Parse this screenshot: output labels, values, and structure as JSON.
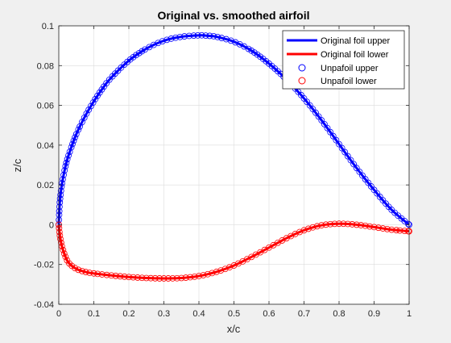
{
  "chart_data": {
    "type": "line",
    "title": "Original vs. smoothed airfoil",
    "xlabel": "x/c",
    "ylabel": "z/c",
    "xlim": [
      0,
      1
    ],
    "ylim": [
      -0.04,
      0.1
    ],
    "xticks": [
      0,
      0.1,
      0.2,
      0.3,
      0.4,
      0.5,
      0.6,
      0.7,
      0.8,
      0.9,
      1
    ],
    "yticks": [
      -0.04,
      -0.02,
      0,
      0.02,
      0.04,
      0.06,
      0.08,
      0.1
    ],
    "xtick_labels": [
      "0",
      "0.1",
      "0.2",
      "0.3",
      "0.4",
      "0.5",
      "0.6",
      "0.7",
      "0.8",
      "0.9",
      "1"
    ],
    "ytick_labels": [
      "-0.04",
      "-0.02",
      "0",
      "0.02",
      "0.04",
      "0.06",
      "0.08",
      "0.1"
    ],
    "grid": true,
    "legend_position": "top-right",
    "series": [
      {
        "name": "Original foil upper",
        "style": "line",
        "color": "#0000ff",
        "x": [
          0,
          0.002,
          0.005,
          0.01,
          0.02,
          0.03,
          0.05,
          0.075,
          0.1,
          0.125,
          0.15,
          0.2,
          0.25,
          0.3,
          0.35,
          0.4,
          0.425,
          0.45,
          0.5,
          0.55,
          0.6,
          0.65,
          0.7,
          0.75,
          0.8,
          0.85,
          0.9,
          0.95,
          1
        ],
        "y": [
          0,
          0.009,
          0.015,
          0.0215,
          0.03,
          0.036,
          0.0455,
          0.0545,
          0.062,
          0.0685,
          0.074,
          0.0825,
          0.0885,
          0.0925,
          0.0945,
          0.0952,
          0.095,
          0.0945,
          0.092,
          0.0875,
          0.081,
          0.073,
          0.0635,
          0.0525,
          0.0405,
          0.0285,
          0.0175,
          0.0075,
          0
        ]
      },
      {
        "name": "Original foil lower",
        "style": "line",
        "color": "#ff0000",
        "x": [
          0,
          0.002,
          0.005,
          0.01,
          0.02,
          0.03,
          0.05,
          0.075,
          0.1,
          0.15,
          0.2,
          0.25,
          0.3,
          0.35,
          0.4,
          0.45,
          0.5,
          0.55,
          0.6,
          0.65,
          0.7,
          0.75,
          0.8,
          0.85,
          0.9,
          0.95,
          1
        ],
        "y": [
          0,
          -0.004,
          -0.0075,
          -0.0115,
          -0.0165,
          -0.0195,
          -0.0222,
          -0.0237,
          -0.0245,
          -0.0255,
          -0.0263,
          -0.0268,
          -0.027,
          -0.0268,
          -0.0258,
          -0.0237,
          -0.0205,
          -0.0162,
          -0.0115,
          -0.0068,
          -0.0028,
          -0.0003,
          0.0005,
          0.0,
          -0.0012,
          -0.0025,
          -0.0033
        ]
      },
      {
        "name": "Unpafoil upper",
        "style": "markers",
        "marker": "circle",
        "color": "#0000ff",
        "x": [
          0,
          0.002,
          0.005,
          0.01,
          0.02,
          0.03,
          0.05,
          0.075,
          0.1,
          0.125,
          0.15,
          0.2,
          0.25,
          0.3,
          0.35,
          0.4,
          0.425,
          0.45,
          0.5,
          0.55,
          0.6,
          0.65,
          0.7,
          0.75,
          0.8,
          0.85,
          0.9,
          0.95,
          1
        ],
        "y": [
          0,
          0.009,
          0.015,
          0.0215,
          0.03,
          0.036,
          0.0455,
          0.0545,
          0.062,
          0.0685,
          0.074,
          0.0825,
          0.0885,
          0.0925,
          0.0945,
          0.0952,
          0.095,
          0.0945,
          0.092,
          0.0875,
          0.081,
          0.073,
          0.0635,
          0.0525,
          0.0405,
          0.0285,
          0.0175,
          0.0075,
          0
        ]
      },
      {
        "name": "Unpafoil lower",
        "style": "markers",
        "marker": "circle",
        "color": "#ff0000",
        "x": [
          0,
          0.002,
          0.005,
          0.01,
          0.02,
          0.03,
          0.05,
          0.075,
          0.1,
          0.15,
          0.2,
          0.25,
          0.3,
          0.35,
          0.4,
          0.45,
          0.5,
          0.55,
          0.6,
          0.65,
          0.7,
          0.75,
          0.8,
          0.85,
          0.9,
          0.95,
          1
        ],
        "y": [
          0,
          -0.004,
          -0.0075,
          -0.0115,
          -0.0165,
          -0.0195,
          -0.0222,
          -0.0237,
          -0.0245,
          -0.0255,
          -0.0263,
          -0.0268,
          -0.027,
          -0.0268,
          -0.0258,
          -0.0237,
          -0.0205,
          -0.0162,
          -0.0115,
          -0.0068,
          -0.0028,
          -0.0003,
          0.0005,
          0.0,
          -0.0012,
          -0.0025,
          -0.0033
        ]
      }
    ]
  }
}
